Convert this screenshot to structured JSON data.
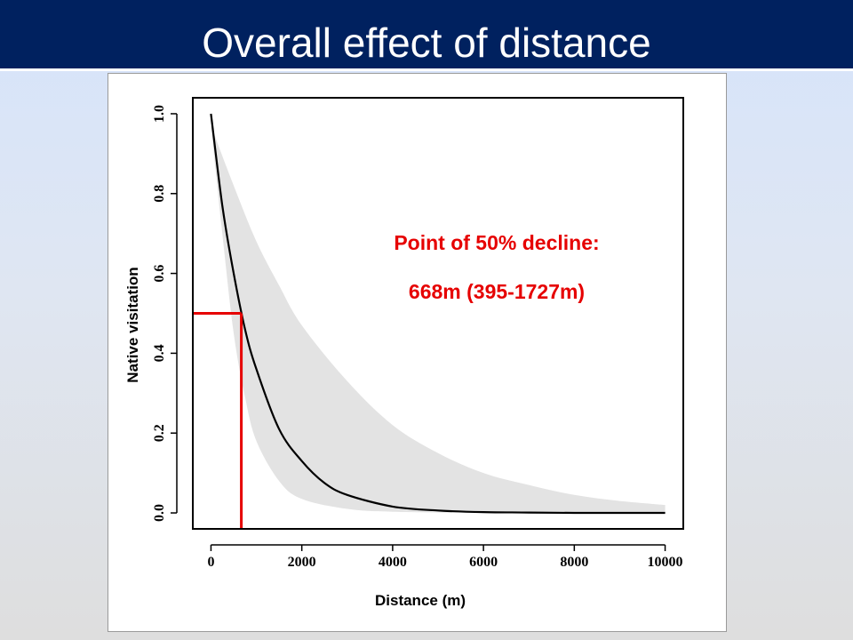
{
  "slide": {
    "title": "Overall effect of distance"
  },
  "colors": {
    "title_bar": "#00215f",
    "ci_band": "#e3e3e3",
    "curve": "#000000",
    "marker": "#e60000"
  },
  "chart_data": {
    "type": "line",
    "title": "",
    "xlabel": "Distance (m)",
    "ylabel": "Native visitation",
    "xlim": [
      -400,
      10400
    ],
    "ylim": [
      -0.04,
      1.04
    ],
    "xticks": [
      0,
      2000,
      4000,
      6000,
      8000,
      10000
    ],
    "xtick_labels": [
      "0",
      "2000",
      "4000",
      "6000",
      "8000",
      "10000"
    ],
    "yticks": [
      0.0,
      0.2,
      0.4,
      0.6,
      0.8,
      1.0
    ],
    "ytick_labels": [
      "0.0",
      "0.2",
      "0.4",
      "0.6",
      "0.8",
      "1.0"
    ],
    "grid": false,
    "series": [
      {
        "role": "fitted-curve",
        "x": [
          0,
          250,
          500,
          750,
          1000,
          1500,
          2000,
          2500,
          3000,
          4000,
          5000,
          6000,
          7000,
          8000,
          9000,
          10000
        ],
        "y": [
          1.0,
          0.77,
          0.6,
          0.46,
          0.36,
          0.21,
          0.13,
          0.075,
          0.045,
          0.016,
          0.006,
          0.002,
          0.001,
          0.0,
          0.0,
          0.0
        ]
      },
      {
        "role": "ci-upper",
        "x": [
          0,
          500,
          1000,
          1500,
          2000,
          3000,
          4000,
          5000,
          6000,
          7000,
          8000,
          9000,
          10000
        ],
        "y": [
          0.97,
          0.82,
          0.68,
          0.57,
          0.47,
          0.33,
          0.22,
          0.15,
          0.1,
          0.07,
          0.045,
          0.03,
          0.02
        ]
      },
      {
        "role": "ci-lower",
        "x": [
          0,
          250,
          500,
          750,
          1000,
          1500,
          2000,
          3000,
          4000,
          6000,
          8000,
          10000
        ],
        "y": [
          0.97,
          0.7,
          0.45,
          0.29,
          0.18,
          0.08,
          0.035,
          0.01,
          0.003,
          0.0,
          0.0,
          0.0
        ]
      }
    ],
    "marker": {
      "x": 668,
      "y": 0.5
    },
    "annotation": {
      "line1": "Point of 50% decline:",
      "line2": "668m (395-1727m)"
    }
  }
}
